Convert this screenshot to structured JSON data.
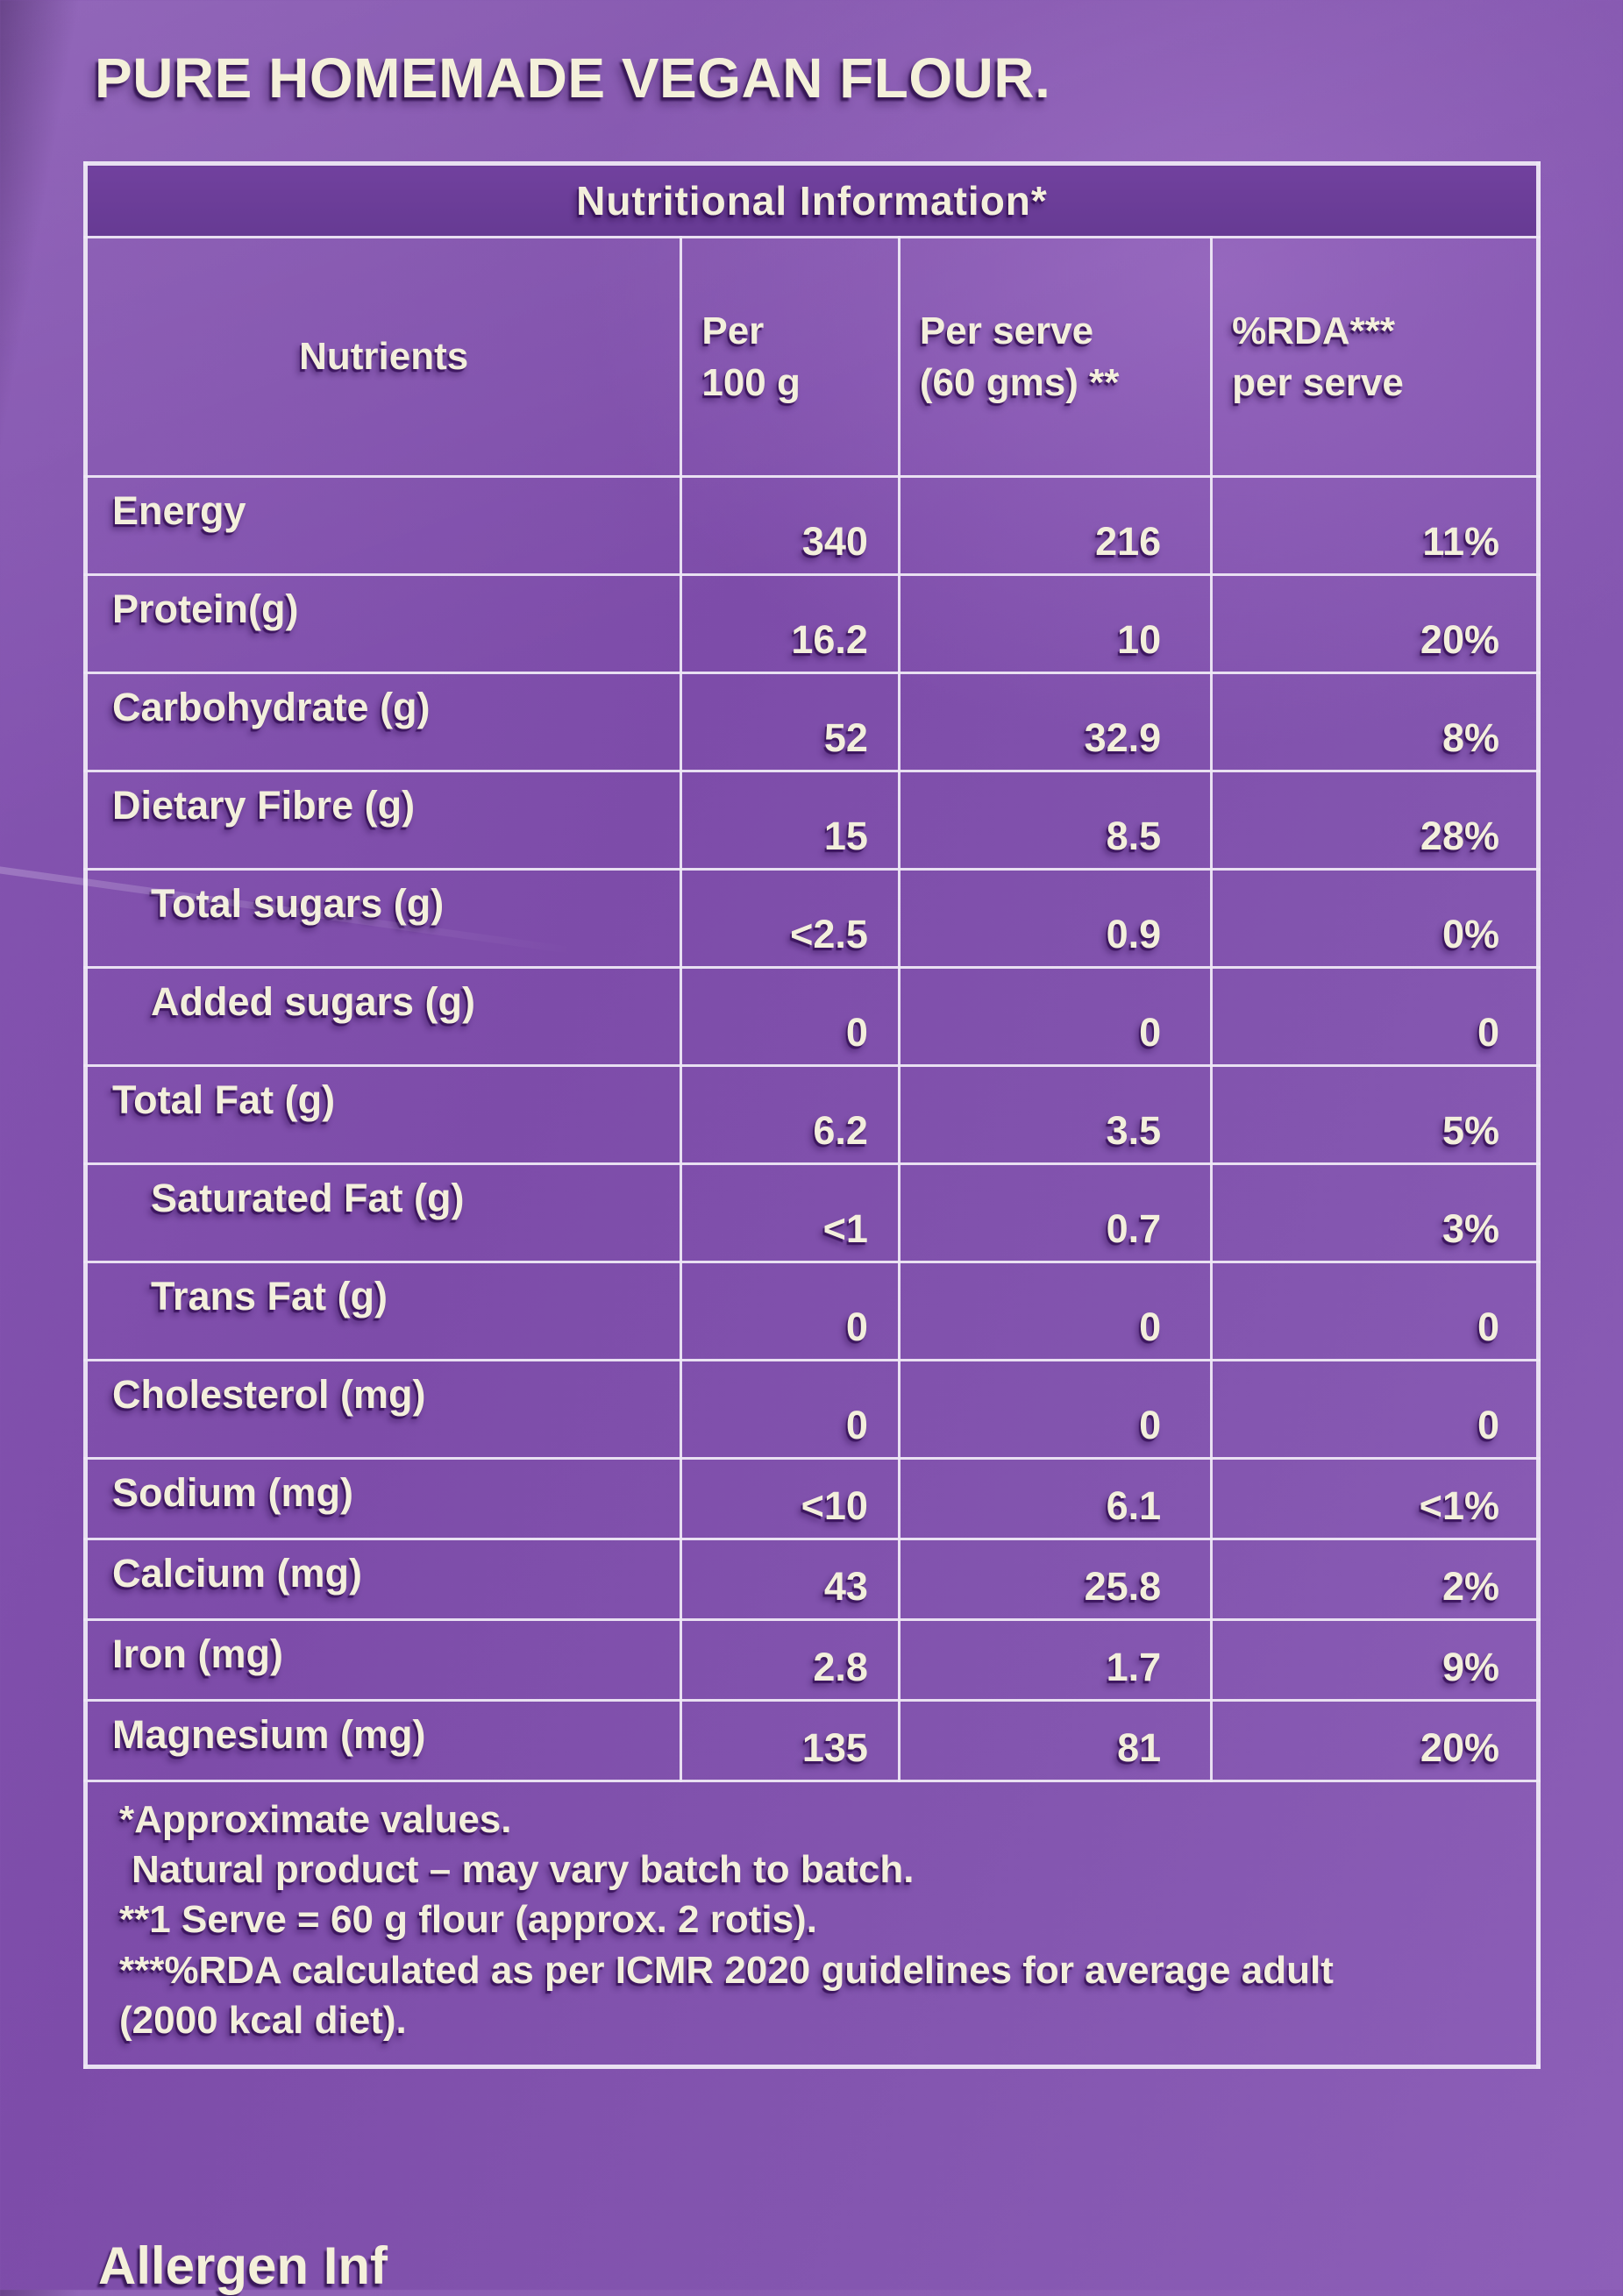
{
  "title": "PURE HOMEMADE VEGAN FLOUR.",
  "table": {
    "title": "Nutritional Information*",
    "columns": [
      "Nutrients",
      "Per\n100 g",
      "Per serve\n(60 gms) **",
      "%RDA***\nper serve"
    ],
    "rows": [
      {
        "label": "Energy",
        "indent": false,
        "compact": false,
        "per100": "340",
        "serve": "216",
        "rda": "11%"
      },
      {
        "label": "Protein(g)",
        "indent": false,
        "compact": false,
        "per100": "16.2",
        "serve": "10",
        "rda": "20%"
      },
      {
        "label": "Carbohydrate (g)",
        "indent": false,
        "compact": false,
        "per100": "52",
        "serve": "32.9",
        "rda": "8%"
      },
      {
        "label": "Dietary Fibre (g)",
        "indent": false,
        "compact": false,
        "per100": "15",
        "serve": "8.5",
        "rda": "28%"
      },
      {
        "label": "Total sugars (g)",
        "indent": true,
        "compact": false,
        "per100": "<2.5",
        "serve": "0.9",
        "rda": "0%"
      },
      {
        "label": "Added sugars (g)",
        "indent": true,
        "compact": false,
        "per100": "0",
        "serve": "0",
        "rda": "0"
      },
      {
        "label": "Total Fat (g)",
        "indent": false,
        "compact": false,
        "per100": "6.2",
        "serve": "3.5",
        "rda": "5%"
      },
      {
        "label": "Saturated Fat (g)",
        "indent": true,
        "compact": false,
        "per100": "<1",
        "serve": "0.7",
        "rda": "3%"
      },
      {
        "label": "Trans Fat (g)",
        "indent": true,
        "compact": false,
        "per100": "0",
        "serve": "0",
        "rda": "0"
      },
      {
        "label": "Cholesterol (mg)",
        "indent": false,
        "compact": false,
        "per100": "0",
        "serve": "0",
        "rda": "0"
      },
      {
        "label": "Sodium (mg)",
        "indent": false,
        "compact": true,
        "per100": "<10",
        "serve": "6.1",
        "rda": "<1%"
      },
      {
        "label": "Calcium (mg)",
        "indent": false,
        "compact": true,
        "per100": "43",
        "serve": "25.8",
        "rda": "2%"
      },
      {
        "label": "Iron (mg)",
        "indent": false,
        "compact": true,
        "per100": "2.8",
        "serve": "1.7",
        "rda": "9%"
      },
      {
        "label": "Magnesium (mg)",
        "indent": false,
        "compact": true,
        "per100": "135",
        "serve": "81",
        "rda": "20%"
      }
    ],
    "footnotes": [
      "*Approximate values.",
      "Natural product – may vary batch to batch.",
      "**1 Serve = 60 g flour (approx. 2 rotis).",
      "***%RDA calculated as per ICMR 2020 guidelines for average adult (2000 kcal diet)."
    ]
  },
  "bottom_partial": "Allergen Inf",
  "colors": {
    "background": "#8152ac",
    "band": "#6b3d99",
    "text": "#f3efdc",
    "border": "#ece6f3"
  }
}
